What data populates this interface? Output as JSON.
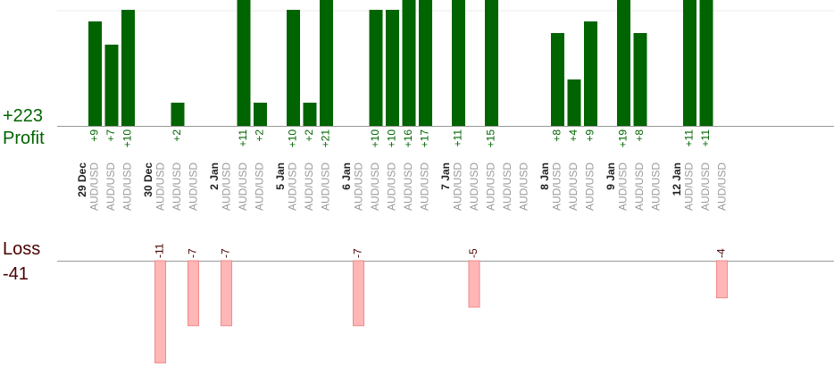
{
  "summary": {
    "profit_total": "+223",
    "profit_label": "Profit",
    "loss_label": "Loss",
    "loss_total": "-41"
  },
  "colors": {
    "profit_bar": "#006400",
    "profit_text": "#006400",
    "loss_fill": "#ffb6b6",
    "loss_stroke": "#f08a8a",
    "loss_text": "#4a0000",
    "pair_text": "#9a9a9a",
    "date_text": "#222222",
    "axis": "#999999",
    "grid": "#eeeeee"
  },
  "chart_data": {
    "type": "bar",
    "title": "",
    "xlabel": "",
    "ylabel": "",
    "grid": true,
    "groups": [
      {
        "date": "29 Dec",
        "trades": [
          {
            "pair": "AUD/USD",
            "value": 9
          },
          {
            "pair": "AUD/USD",
            "value": 7
          },
          {
            "pair": "AUD/USD",
            "value": 10
          }
        ]
      },
      {
        "date": "30 Dec",
        "trades": [
          {
            "pair": "AUD/USD",
            "value": -11
          },
          {
            "pair": "AUD/USD",
            "value": 2
          },
          {
            "pair": "AUD/USD",
            "value": -7
          }
        ]
      },
      {
        "date": "2 Jan",
        "trades": [
          {
            "pair": "AUD/USD",
            "value": -7
          },
          {
            "pair": "AUD/USD",
            "value": 11
          },
          {
            "pair": "AUD/USD",
            "value": 2
          }
        ]
      },
      {
        "date": "5 Jan",
        "trades": [
          {
            "pair": "AUD/USD",
            "value": 10
          },
          {
            "pair": "AUD/USD",
            "value": 2
          },
          {
            "pair": "AUD/USD",
            "value": 21
          }
        ]
      },
      {
        "date": "6 Jan",
        "trades": [
          {
            "pair": "AUD/USD",
            "value": -7
          },
          {
            "pair": "AUD/USD",
            "value": 10
          },
          {
            "pair": "AUD/USD",
            "value": 10
          },
          {
            "pair": "AUD/USD",
            "value": 16
          },
          {
            "pair": "AUD/USD",
            "value": 17
          }
        ]
      },
      {
        "date": "7 Jan",
        "trades": [
          {
            "pair": "AUD/USD",
            "value": 11
          },
          {
            "pair": "AUD/USD",
            "value": -5
          },
          {
            "pair": "AUD/USD",
            "value": 15
          },
          {
            "pair": "AUD/USD",
            "value": null
          },
          {
            "pair": "AUD/USD",
            "value": null
          }
        ]
      },
      {
        "date": "8 Jan",
        "trades": [
          {
            "pair": "AUD/USD",
            "value": 8
          },
          {
            "pair": "AUD/USD",
            "value": 4
          },
          {
            "pair": "AUD/USD",
            "value": 9
          }
        ]
      },
      {
        "date": "9 Jan",
        "trades": [
          {
            "pair": "AUD/USD",
            "value": 19
          },
          {
            "pair": "AUD/USD",
            "value": 8
          },
          {
            "pair": "AUD/USD",
            "value": null
          }
        ]
      },
      {
        "date": "12 Jan",
        "trades": [
          {
            "pair": "AUD/USD",
            "value": 11
          },
          {
            "pair": "AUD/USD",
            "value": 11
          },
          {
            "pair": "AUD/USD",
            "value": -4
          }
        ]
      }
    ]
  }
}
